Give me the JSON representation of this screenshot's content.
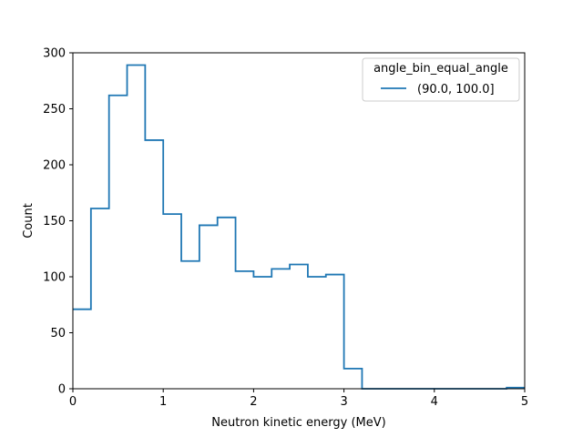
{
  "chart_data": {
    "type": "histogram-step",
    "xlabel": "Neutron kinetic energy (MeV)",
    "ylabel": "Count",
    "xlim": [
      0,
      5
    ],
    "ylim": [
      0,
      300
    ],
    "grid": false,
    "xticks": [
      0,
      1,
      2,
      3,
      4,
      5
    ],
    "yticks": [
      0,
      50,
      100,
      150,
      200,
      250,
      300
    ],
    "legend": {
      "title": "angle_bin_equal_angle",
      "placement": "top-right",
      "entries": [
        "(90.0, 100.0]"
      ]
    },
    "series": [
      {
        "name": "(90.0, 100.0]",
        "color": "#1f77b4",
        "bin_edges": [
          0,
          0.2,
          0.4,
          0.6,
          0.8,
          1.0,
          1.2,
          1.4,
          1.6,
          1.8,
          2.0,
          2.2,
          2.4,
          2.6,
          2.8,
          3.0,
          3.2,
          3.4,
          3.6,
          3.8,
          4.0,
          4.2,
          4.4,
          4.6,
          4.8,
          5.0
        ],
        "counts": [
          71,
          161,
          262,
          289,
          222,
          156,
          114,
          146,
          153,
          105,
          100,
          107,
          111,
          100,
          102,
          18,
          0,
          0,
          0,
          0,
          0,
          0,
          0,
          0,
          1
        ]
      }
    ]
  }
}
